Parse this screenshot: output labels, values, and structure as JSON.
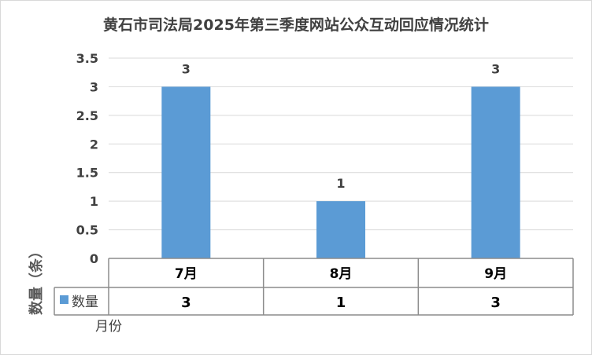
{
  "chart_data": {
    "type": "bar",
    "title": "黄石市司法局2025年第三季度网站公众互动回应情况统计",
    "xlabel": "月份",
    "ylabel": "数量（条）",
    "categories": [
      "7月",
      "8月",
      "9月"
    ],
    "series": [
      {
        "name": "数量",
        "values": [
          3,
          1,
          3
        ],
        "color": "#5b9bd5"
      }
    ],
    "ylim": [
      0,
      3.5
    ],
    "yticks": [
      "0",
      "0.5",
      "1",
      "1.5",
      "2",
      "2.5",
      "3",
      "3.5"
    ],
    "grid": true,
    "data_labels": true,
    "data_table": true
  }
}
